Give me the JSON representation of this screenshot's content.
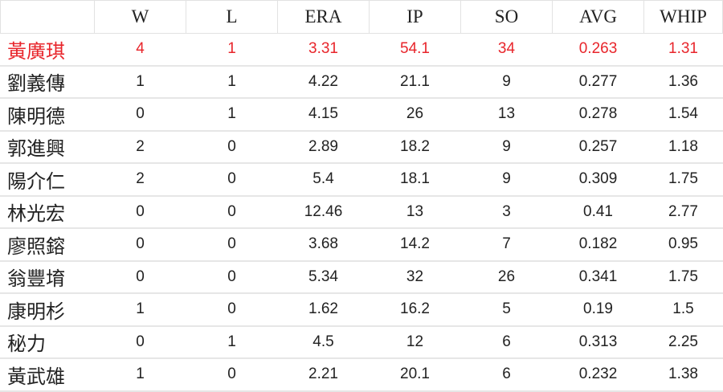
{
  "table": {
    "header": [
      "W",
      "L",
      "ERA",
      "IP",
      "SO",
      "AVG",
      "WHIP"
    ],
    "rows": [
      [
        "黃廣琪",
        "4",
        "1",
        "3.31",
        "54.1",
        "34",
        "0.263",
        "1.31"
      ],
      [
        "劉義傳",
        "1",
        "1",
        "4.22",
        "21.1",
        "9",
        "0.277",
        "1.36"
      ],
      [
        "陳明德",
        "0",
        "1",
        "4.15",
        "26",
        "13",
        "0.278",
        "1.54"
      ],
      [
        "郭進興",
        "2",
        "0",
        "2.89",
        "18.2",
        "9",
        "0.257",
        "1.18"
      ],
      [
        "陽介仁",
        "2",
        "0",
        "5.4",
        "18.1",
        "9",
        "0.309",
        "1.75"
      ],
      [
        "林光宏",
        "0",
        "0",
        "12.46",
        "13",
        "3",
        "0.41",
        "2.77"
      ],
      [
        "廖照鎔",
        "0",
        "0",
        "3.68",
        "14.2",
        "7",
        "0.182",
        "0.95"
      ],
      [
        "翁豐堉",
        "0",
        "0",
        "5.34",
        "32",
        "26",
        "0.341",
        "1.75"
      ],
      [
        "康明杉",
        "1",
        "0",
        "1.62",
        "16.2",
        "5",
        "0.19",
        "1.5"
      ],
      [
        "秘力",
        "0",
        "1",
        "4.5",
        "12",
        "6",
        "0.313",
        "2.25"
      ],
      [
        "黃武雄",
        "1",
        "0",
        "2.21",
        "20.1",
        "6",
        "0.232",
        "1.38"
      ]
    ]
  }
}
